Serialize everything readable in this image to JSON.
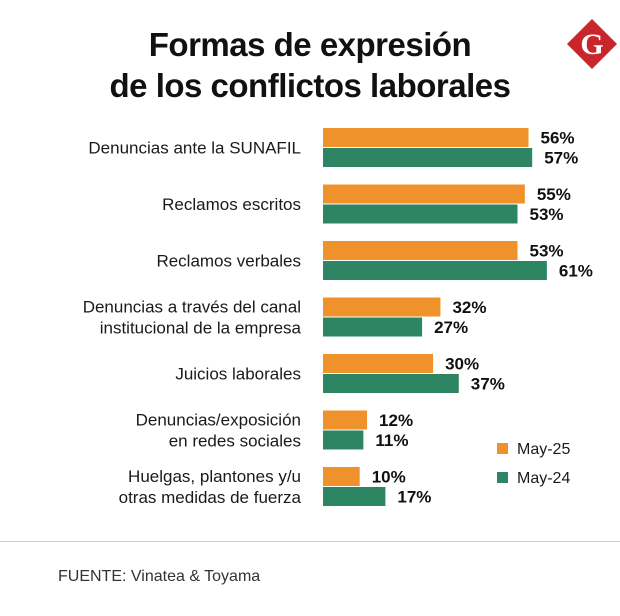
{
  "title_lines": [
    "Formas de expresión",
    "de los conflictos laborales"
  ],
  "logo": {
    "letter": "G",
    "color": "#c8262b"
  },
  "source": "FUENTE: Vinatea & Toyama",
  "chart_data": {
    "type": "bar",
    "orientation": "horizontal",
    "title": "Formas de expresión de los conflictos laborales",
    "categories": [
      [
        "Denuncias ante la SUNAFIL"
      ],
      [
        "Reclamos escritos"
      ],
      [
        "Reclamos verbales"
      ],
      [
        "Denuncias a través del canal",
        "institucional de la empresa"
      ],
      [
        "Juicios laborales"
      ],
      [
        "Denuncias/exposición",
        "en redes sociales"
      ],
      [
        "Huelgas, plantones y/u",
        "otras medidas de fuerza"
      ]
    ],
    "series": [
      {
        "name": "May-25",
        "color": "#f0922b",
        "values": [
          56,
          55,
          53,
          32,
          30,
          12,
          10
        ]
      },
      {
        "name": "May-24",
        "color": "#2e8564",
        "values": [
          57,
          53,
          61,
          27,
          37,
          11,
          17
        ]
      }
    ],
    "unit": "%",
    "xlim": [
      0,
      100
    ],
    "legend_position": "bottom-right",
    "grid": false
  }
}
